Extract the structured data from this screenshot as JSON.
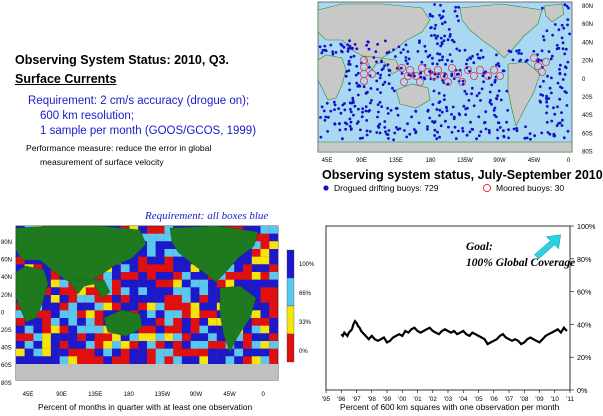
{
  "header": {
    "title": "Observing System Status:  2010, Q3.",
    "subtitle": "Surface Currents"
  },
  "requirement": {
    "line1": "Requirement: 2 cm/s accuracy (drogue on);",
    "line2": "600 km resolution;",
    "line3": "1 sample per month (GOOS/GCOS, 1999)"
  },
  "performance": {
    "line1": "Performance measure: reduce the error in global",
    "line2": "measurement of surface velocity"
  },
  "map_buoys": {
    "title": "Observing system status, July-September 2010",
    "lon_labels": [
      "45E",
      "90E",
      "135E",
      "180",
      "135W",
      "90W",
      "45W",
      "0"
    ],
    "lat_labels": [
      "80N",
      "60N",
      "40N",
      "20N",
      "0",
      "20S",
      "40S",
      "60S",
      "80S"
    ],
    "legend_drifting": "Drogued drifting buoys: 729",
    "legend_moored": "Moored buoys: 30",
    "colors": {
      "drifting": "#1111cc",
      "moored": "#ee3344",
      "ocean": "#a9d8f2",
      "land": "#c8c8c8",
      "land_green": "#2e8b2e"
    }
  },
  "map_boxes": {
    "requirement_note": "Requirement: all boxes blue",
    "lat_labels": [
      "80N",
      "60N",
      "40N",
      "20N",
      "0",
      "20S",
      "40S",
      "60S",
      "80S"
    ],
    "lon_labels": [
      "45E",
      "90E",
      "135E",
      "180",
      "135W",
      "90W",
      "45W",
      "0"
    ],
    "colorbar_labels": [
      "100%",
      "66%",
      "33%",
      "0%"
    ],
    "colorbar_colors": [
      "#1a1acc",
      "#58c8f0",
      "#f5e50a",
      "#e01010"
    ],
    "xcaption": "Percent of months in quarter with at least one observation"
  },
  "chart_data": {
    "type": "line",
    "x_labels": [
      "'95",
      "'96",
      "'97",
      "'98",
      "'99",
      "'00",
      "'01",
      "'02",
      "'03",
      "'04",
      "'05",
      "'06",
      "'07",
      "'08",
      "'09",
      "'10",
      "'11"
    ],
    "y_labels": [
      "0%",
      "20%",
      "40%",
      "60%",
      "80%",
      "100%"
    ],
    "ylim": [
      0,
      100
    ],
    "xlim": [
      1995,
      2011
    ],
    "goal_line1": "Goal:",
    "goal_line2": "100% Global Coverage",
    "xlabel": "Percent of 600 km squares with one observation per month",
    "line_color": "#000000",
    "arrow_color": "#2ad2e0",
    "series": [
      {
        "x": [
          1996.0,
          1996.1,
          1996.2,
          1996.3,
          1996.4,
          1996.5,
          1996.6,
          1996.7,
          1996.8,
          1996.9,
          1997.0,
          1997.1,
          1997.2,
          1997.3,
          1997.4,
          1997.5,
          1997.6,
          1997.7,
          1997.8,
          1997.9,
          1998.0,
          1998.2,
          1998.4,
          1998.6,
          1998.8,
          1999.0,
          1999.2,
          1999.4,
          1999.6,
          1999.8,
          2000.0,
          2000.2,
          2000.4,
          2000.6,
          2000.8,
          2001.0,
          2001.2,
          2001.4,
          2001.6,
          2001.8,
          2002.0,
          2002.2,
          2002.4,
          2002.6,
          2002.8,
          2003.0,
          2003.2,
          2003.4,
          2003.6,
          2003.8,
          2004.0,
          2004.2,
          2004.4,
          2004.6,
          2004.8,
          2005.0,
          2005.2,
          2005.4,
          2005.6,
          2005.8,
          2006.0,
          2006.2,
          2006.4,
          2006.6,
          2006.8,
          2007.0,
          2007.2,
          2007.4,
          2007.6,
          2007.8,
          2008.0,
          2008.2,
          2008.4,
          2008.6,
          2008.8,
          2009.0,
          2009.2,
          2009.4,
          2009.6,
          2009.8,
          2010.0,
          2010.2,
          2010.4,
          2010.6,
          2010.8
        ],
        "y": [
          34,
          33,
          35,
          34,
          33,
          35,
          36,
          37,
          40,
          42,
          41,
          39,
          38,
          36,
          35,
          34,
          33,
          32,
          31,
          32,
          33,
          31,
          30,
          31,
          32,
          29,
          30,
          32,
          33,
          34,
          33,
          36,
          35,
          37,
          38,
          36,
          35,
          36,
          37,
          38,
          36,
          35,
          34,
          36,
          37,
          36,
          35,
          36,
          34,
          35,
          36,
          34,
          33,
          35,
          34,
          33,
          32,
          31,
          28,
          29,
          30,
          31,
          33,
          34,
          32,
          31,
          30,
          31,
          30,
          28,
          29,
          31,
          32,
          31,
          30,
          29,
          31,
          33,
          34,
          35,
          36,
          37,
          35,
          38,
          36
        ]
      }
    ]
  }
}
